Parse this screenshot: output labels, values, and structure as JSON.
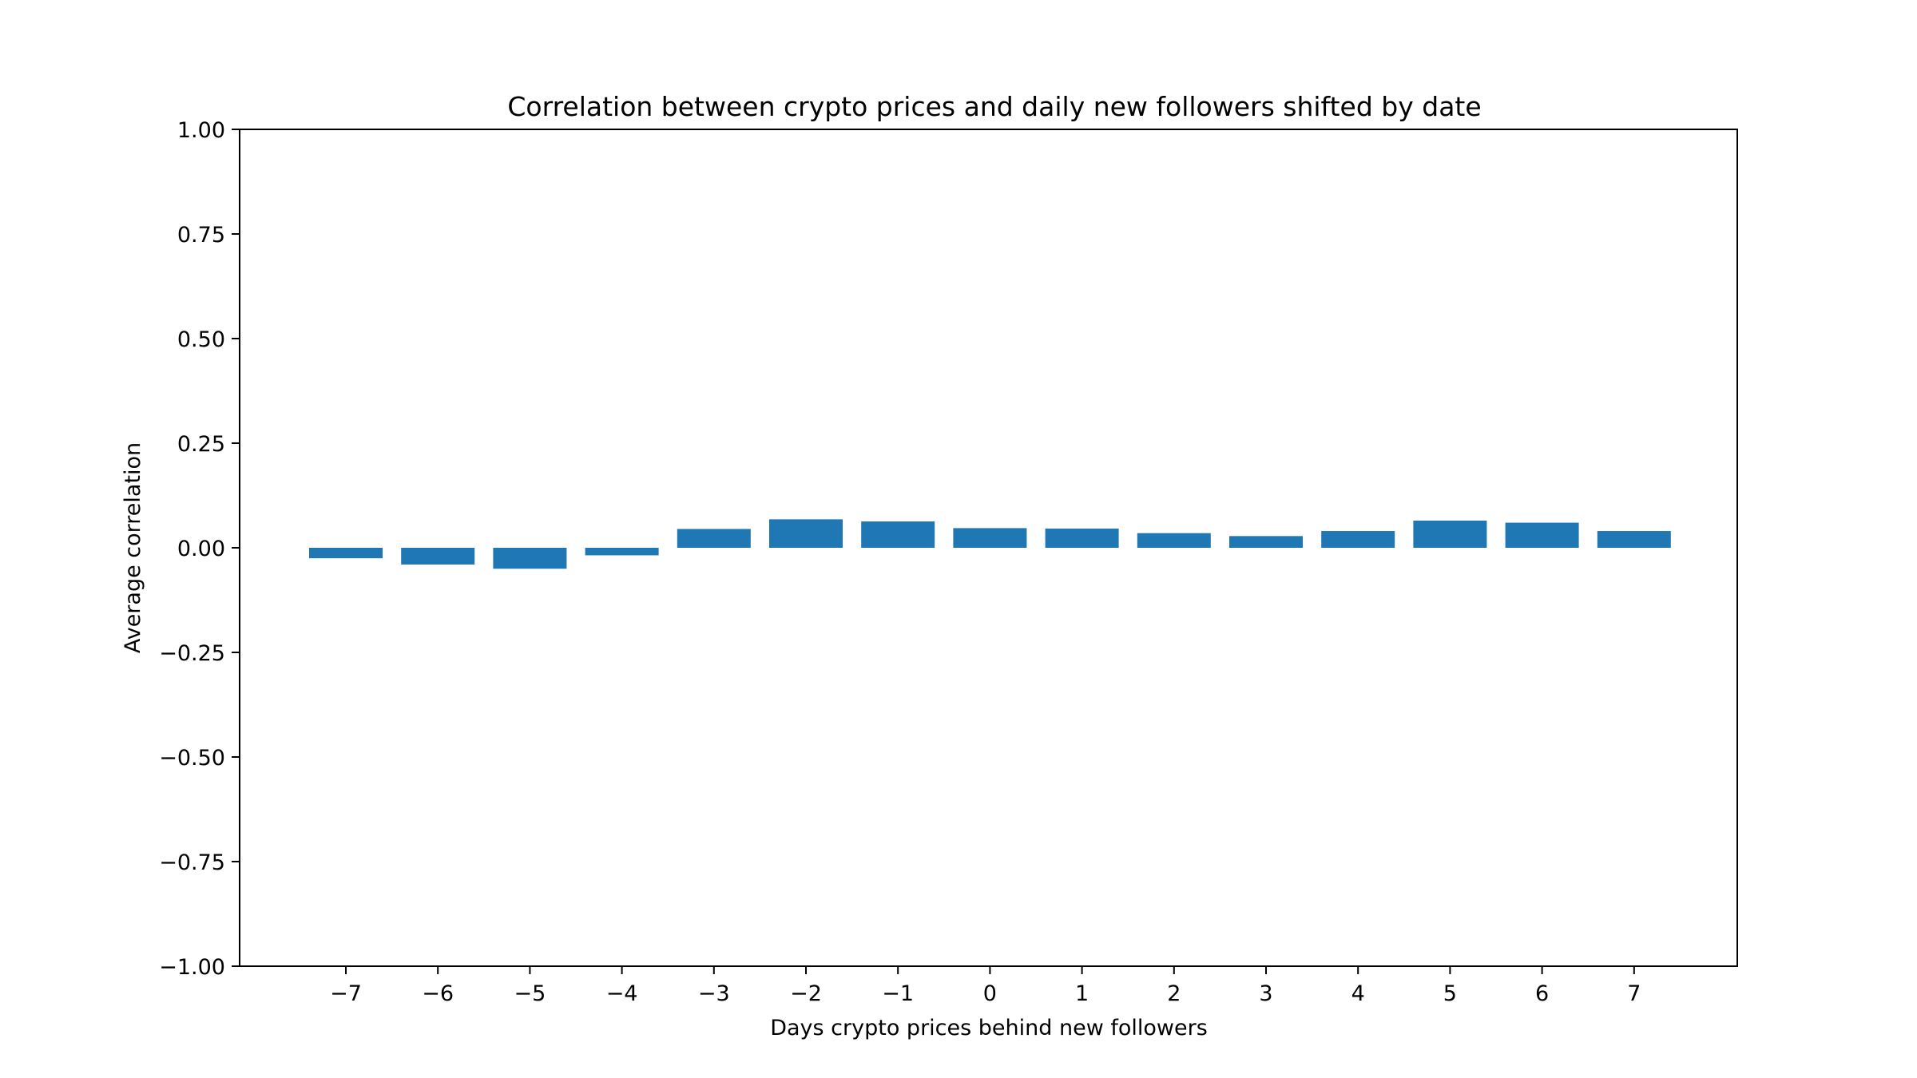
{
  "chart_data": {
    "type": "bar",
    "title": "Correlation between crypto prices and daily new followers shifted by date",
    "xlabel": "Days crypto prices behind new followers",
    "ylabel": "Average correlation",
    "categories": [
      -7,
      -6,
      -5,
      -4,
      -3,
      -2,
      -1,
      0,
      1,
      2,
      3,
      4,
      5,
      6,
      7
    ],
    "category_labels": [
      "−7",
      "−6",
      "−5",
      "−4",
      "−3",
      "−2",
      "−1",
      "0",
      "1",
      "2",
      "3",
      "4",
      "5",
      "6",
      "7"
    ],
    "values": [
      -0.025,
      -0.04,
      -0.05,
      -0.018,
      0.045,
      0.068,
      0.063,
      0.047,
      0.046,
      0.035,
      0.028,
      0.04,
      0.065,
      0.06,
      0.04
    ],
    "ylim": [
      -1.0,
      1.0
    ],
    "yticks": [
      -1.0,
      -0.75,
      -0.5,
      -0.25,
      0.0,
      0.25,
      0.5,
      0.75,
      1.0
    ],
    "ytick_labels": [
      "−1.00",
      "−0.75",
      "−0.50",
      "−0.25",
      "0.00",
      "0.25",
      "0.50",
      "0.75",
      "1.00"
    ],
    "grid": false,
    "bar_color": "#1f77b4"
  }
}
